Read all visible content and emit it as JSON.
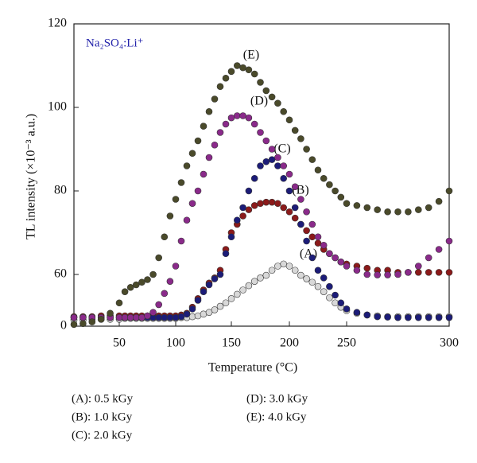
{
  "chart_data": {
    "type": "scatter",
    "title": "Na₂SO₄:Li⁺",
    "x_label": "Temperature (°C)",
    "y_label": "TL intensity (×10⁻³ a.u.)",
    "xlim": [
      25,
      300
    ],
    "xticks": [
      50,
      100,
      150,
      200,
      250,
      300
    ],
    "ylim": [
      0,
      120
    ],
    "yticks": [
      0,
      60,
      80,
      100,
      120
    ],
    "x": [
      25,
      30,
      35,
      40,
      45,
      50,
      55,
      60,
      65,
      70,
      75,
      80,
      85,
      90,
      95,
      100,
      105,
      110,
      115,
      120,
      125,
      130,
      135,
      140,
      145,
      150,
      155,
      160,
      165,
      170,
      175,
      180,
      185,
      190,
      195,
      200,
      205,
      210,
      215,
      220,
      225,
      230,
      235,
      240,
      245,
      250,
      255,
      260,
      265,
      270,
      275,
      280,
      285,
      290,
      295,
      300
    ],
    "series": [
      {
        "name": "(A)",
        "color": "#d8d8d8",
        "values": [
          7,
          7,
          8,
          8,
          8,
          8,
          9,
          9,
          9,
          9,
          9,
          9,
          9,
          9,
          9,
          9,
          10,
          10,
          11,
          12,
          14,
          16,
          19,
          23,
          27,
          32,
          37,
          42,
          47,
          52,
          56,
          59,
          61,
          62,
          62.5,
          62,
          61,
          59,
          55,
          51,
          46,
          40,
          33,
          27,
          22,
          18,
          15,
          13,
          12,
          11,
          11,
          11,
          11,
          11,
          11,
          11
        ]
      },
      {
        "name": "(B)",
        "color": "#8b1a1a",
        "values": [
          11,
          11,
          11,
          12,
          12,
          12,
          12,
          12,
          12,
          12,
          12,
          12,
          12,
          12,
          12,
          12,
          13,
          15,
          22,
          32,
          42,
          50,
          56,
          61,
          66,
          70,
          72,
          74,
          75.5,
          76.5,
          77,
          77.3,
          77.3,
          77,
          76,
          75,
          73.5,
          72,
          70.5,
          69,
          67.5,
          66,
          65,
          64,
          63,
          62.5,
          62,
          61.5,
          61,
          61,
          60.5,
          60.5,
          60.5,
          60.5,
          60.5,
          60.5
        ]
      },
      {
        "name": "(C)",
        "color": "#1c1c78",
        "values": [
          10,
          10,
          10,
          10,
          10,
          10,
          10,
          10,
          10,
          10,
          10,
          10,
          10,
          10,
          10,
          10,
          11,
          14,
          20,
          30,
          40,
          48,
          55,
          60,
          65,
          69,
          73,
          76,
          80,
          83,
          86,
          87,
          87.5,
          86,
          83,
          80,
          76,
          72,
          68,
          64,
          61,
          56,
          46,
          36,
          27,
          20,
          16,
          13,
          11,
          10.5,
          10,
          10,
          10,
          10,
          10,
          10
        ]
      },
      {
        "name": "(D)",
        "color": "#8a2a8a",
        "values": [
          10,
          10,
          10,
          10,
          10,
          10,
          10,
          10,
          10,
          10,
          12,
          16,
          25,
          38,
          52,
          62,
          68,
          73,
          77,
          80,
          84,
          88,
          91,
          94,
          96,
          97.5,
          98,
          98,
          97.5,
          96,
          94,
          92,
          90,
          88,
          86,
          84,
          81,
          78,
          75,
          72,
          69,
          67,
          65,
          64,
          63,
          62,
          61,
          60,
          59.5,
          59.5,
          60,
          60.5,
          62,
          64,
          66,
          68
        ]
      },
      {
        "name": "(E)",
        "color": "#4a4a2a",
        "values": [
          2,
          3,
          5,
          8,
          15,
          27,
          40,
          45,
          48,
          51,
          54,
          60,
          64,
          69,
          74,
          78,
          82,
          86,
          89,
          92,
          95.5,
          99,
          102,
          105,
          107,
          108.6,
          110,
          109.5,
          109,
          108,
          106,
          104,
          102.5,
          101,
          99,
          97,
          94.5,
          92.5,
          90,
          87.5,
          85,
          83,
          81.5,
          80,
          78.5,
          77,
          76.5,
          76,
          75.5,
          75,
          75,
          75,
          75.5,
          76,
          77.5,
          80
        ]
      }
    ],
    "legend": [
      "(A): 0.5 kGy",
      "(B): 1.0 kGy",
      "(C): 2.0 kGy",
      "(D): 3.0 kGy",
      "(E): 4.0 kGy"
    ]
  }
}
